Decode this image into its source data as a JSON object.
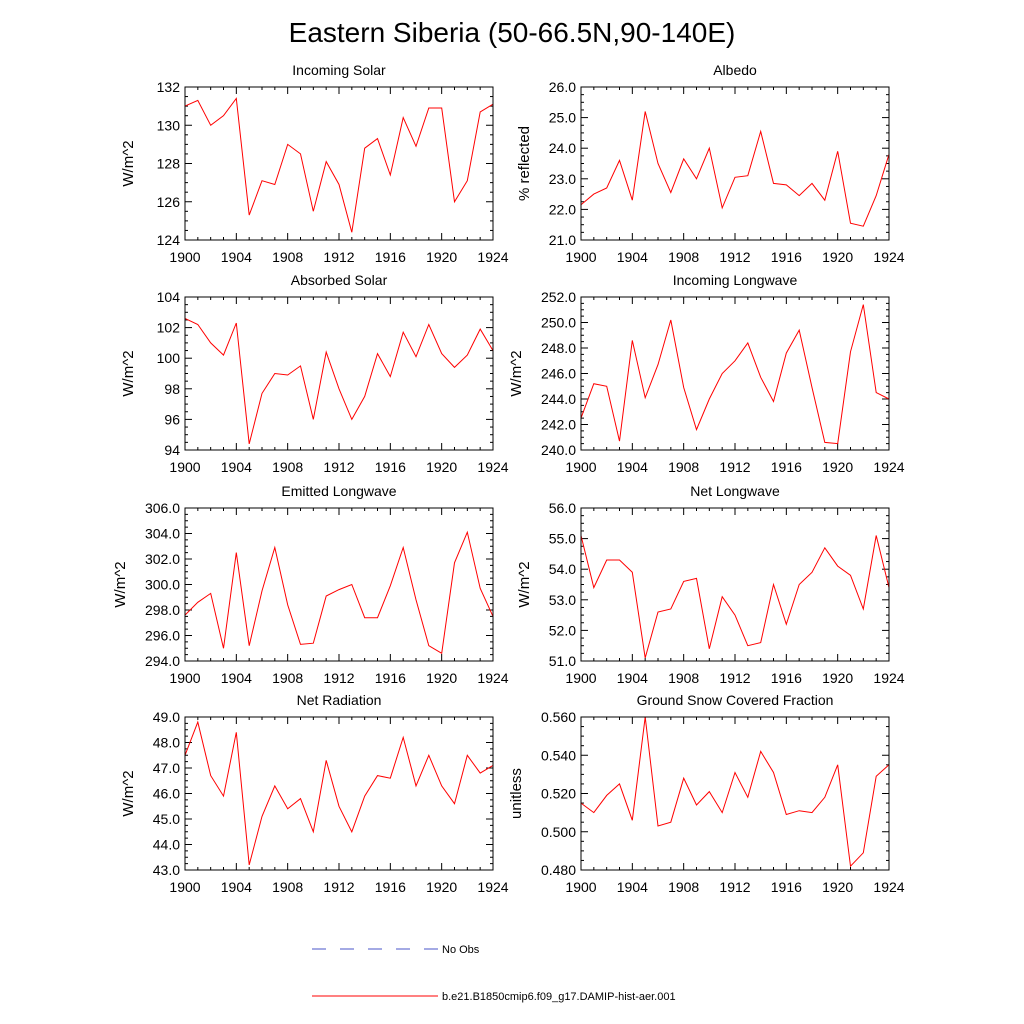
{
  "title": "Eastern Siberia (50-66.5N,90-140E)",
  "colors": {
    "model": "#ff0000",
    "obs": "#4a55c8"
  },
  "legend": [
    {
      "label": "No Obs",
      "style": "dashed",
      "color": "#4a55c8"
    },
    {
      "label": "b.e21.B1850cmip6.f09_g17.DAMIP-hist-aer.001",
      "style": "solid",
      "color": "#ff0000"
    }
  ],
  "chart_data": [
    {
      "type": "line",
      "title": "Incoming Solar",
      "xlabel": "",
      "ylabel": "W/m^2",
      "xlim": [
        1900,
        1924
      ],
      "ylim": [
        124,
        132
      ],
      "xticks": [
        "1900",
        "1904",
        "1908",
        "1912",
        "1916",
        "1920",
        "1924"
      ],
      "yticks": [
        "124",
        "126",
        "128",
        "130",
        "132"
      ],
      "x": [
        1900,
        1901,
        1902,
        1903,
        1904,
        1905,
        1906,
        1907,
        1908,
        1909,
        1910,
        1911,
        1912,
        1913,
        1914,
        1915,
        1916,
        1917,
        1918,
        1919,
        1920,
        1921,
        1922,
        1923,
        1924
      ],
      "series": [
        {
          "values": [
            131.0,
            131.3,
            130.0,
            130.5,
            131.4,
            125.3,
            127.1,
            126.9,
            129.0,
            128.5,
            125.5,
            128.1,
            126.9,
            124.4,
            128.8,
            129.3,
            127.4,
            130.4,
            128.9,
            130.9,
            130.9,
            126.0,
            127.1,
            130.7,
            131.1
          ]
        }
      ]
    },
    {
      "type": "line",
      "title": "Albedo",
      "xlabel": "",
      "ylabel": "% reflected",
      "xlim": [
        1900,
        1924
      ],
      "ylim": [
        21.0,
        26.0
      ],
      "xticks": [
        "1900",
        "1904",
        "1908",
        "1912",
        "1916",
        "1920",
        "1924"
      ],
      "yticks": [
        "21.0",
        "22.0",
        "23.0",
        "24.0",
        "25.0",
        "26.0"
      ],
      "x": [
        1900,
        1901,
        1902,
        1903,
        1904,
        1905,
        1906,
        1907,
        1908,
        1909,
        1910,
        1911,
        1912,
        1913,
        1914,
        1915,
        1916,
        1917,
        1918,
        1919,
        1920,
        1921,
        1922,
        1923,
        1924
      ],
      "series": [
        {
          "values": [
            22.15,
            22.5,
            22.7,
            23.6,
            22.3,
            25.2,
            23.5,
            22.55,
            23.65,
            23.0,
            24.0,
            22.05,
            23.05,
            23.1,
            24.55,
            22.85,
            22.8,
            22.45,
            22.85,
            22.3,
            23.9,
            21.55,
            21.45,
            22.45,
            23.8
          ]
        }
      ]
    },
    {
      "type": "line",
      "title": "Absorbed Solar",
      "xlabel": "",
      "ylabel": "W/m^2",
      "xlim": [
        1900,
        1924
      ],
      "ylim": [
        94,
        104
      ],
      "xticks": [
        "1900",
        "1904",
        "1908",
        "1912",
        "1916",
        "1920",
        "1924"
      ],
      "yticks": [
        "94",
        "96",
        "98",
        "100",
        "102",
        "104"
      ],
      "x": [
        1900,
        1901,
        1902,
        1903,
        1904,
        1905,
        1906,
        1907,
        1908,
        1909,
        1910,
        1911,
        1912,
        1913,
        1914,
        1915,
        1916,
        1917,
        1918,
        1919,
        1920,
        1921,
        1922,
        1923,
        1924
      ],
      "series": [
        {
          "values": [
            102.6,
            102.2,
            101.0,
            100.2,
            102.3,
            94.4,
            97.7,
            99.0,
            98.9,
            99.5,
            96.0,
            100.4,
            98.0,
            96.0,
            97.5,
            100.3,
            98.8,
            101.7,
            100.1,
            102.2,
            100.3,
            99.4,
            100.2,
            101.9,
            100.5
          ]
        }
      ]
    },
    {
      "type": "line",
      "title": "Incoming Longwave",
      "xlabel": "",
      "ylabel": "W/m^2",
      "xlim": [
        1900,
        1924
      ],
      "ylim": [
        240.0,
        252.0
      ],
      "xticks": [
        "1900",
        "1904",
        "1908",
        "1912",
        "1916",
        "1920",
        "1924"
      ],
      "yticks": [
        "240.0",
        "242.0",
        "244.0",
        "246.0",
        "248.0",
        "250.0",
        "252.0"
      ],
      "x": [
        1900,
        1901,
        1902,
        1903,
        1904,
        1905,
        1906,
        1907,
        1908,
        1909,
        1910,
        1911,
        1912,
        1913,
        1914,
        1915,
        1916,
        1917,
        1918,
        1919,
        1920,
        1921,
        1922,
        1923,
        1924
      ],
      "series": [
        {
          "values": [
            242.5,
            245.2,
            245.0,
            240.7,
            248.6,
            244.1,
            246.7,
            250.2,
            244.9,
            241.6,
            244.0,
            246.0,
            247.0,
            248.4,
            245.7,
            243.8,
            247.6,
            249.4,
            244.9,
            240.6,
            240.5,
            247.7,
            251.4,
            244.5,
            244.0
          ]
        }
      ]
    },
    {
      "type": "line",
      "title": "Emitted Longwave",
      "xlabel": "",
      "ylabel": "W/m^2",
      "xlim": [
        1900,
        1924
      ],
      "ylim": [
        294.0,
        306.0
      ],
      "xticks": [
        "1900",
        "1904",
        "1908",
        "1912",
        "1916",
        "1920",
        "1924"
      ],
      "yticks": [
        "294.0",
        "296.0",
        "298.0",
        "300.0",
        "302.0",
        "304.0",
        "306.0"
      ],
      "x": [
        1900,
        1901,
        1902,
        1903,
        1904,
        1905,
        1906,
        1907,
        1908,
        1909,
        1910,
        1911,
        1912,
        1913,
        1914,
        1915,
        1916,
        1917,
        1918,
        1919,
        1920,
        1921,
        1922,
        1923,
        1924
      ],
      "series": [
        {
          "values": [
            297.6,
            298.6,
            299.3,
            295.0,
            302.5,
            295.2,
            299.5,
            302.9,
            298.4,
            295.3,
            295.4,
            299.1,
            299.6,
            300.0,
            297.4,
            297.4,
            299.9,
            302.9,
            298.8,
            295.2,
            294.6,
            301.7,
            304.1,
            299.7,
            297.5
          ]
        }
      ]
    },
    {
      "type": "line",
      "title": "Net Longwave",
      "xlabel": "",
      "ylabel": "W/m^2",
      "xlim": [
        1900,
        1924
      ],
      "ylim": [
        51.0,
        56.0
      ],
      "xticks": [
        "1900",
        "1904",
        "1908",
        "1912",
        "1916",
        "1920",
        "1924"
      ],
      "yticks": [
        "51.0",
        "52.0",
        "53.0",
        "54.0",
        "55.0",
        "56.0"
      ],
      "x": [
        1900,
        1901,
        1902,
        1903,
        1904,
        1905,
        1906,
        1907,
        1908,
        1909,
        1910,
        1911,
        1912,
        1913,
        1914,
        1915,
        1916,
        1917,
        1918,
        1919,
        1920,
        1921,
        1922,
        1923,
        1924
      ],
      "series": [
        {
          "values": [
            55.1,
            53.4,
            54.3,
            54.3,
            53.9,
            51.1,
            52.6,
            52.7,
            53.6,
            53.7,
            51.4,
            53.1,
            52.5,
            51.5,
            51.6,
            53.5,
            52.2,
            53.5,
            53.9,
            54.7,
            54.1,
            53.8,
            52.7,
            55.1,
            53.4
          ]
        }
      ]
    },
    {
      "type": "line",
      "title": "Net Radiation",
      "xlabel": "",
      "ylabel": "W/m^2",
      "xlim": [
        1900,
        1924
      ],
      "ylim": [
        43.0,
        49.0
      ],
      "xticks": [
        "1900",
        "1904",
        "1908",
        "1912",
        "1916",
        "1920",
        "1924"
      ],
      "yticks": [
        "43.0",
        "44.0",
        "45.0",
        "46.0",
        "47.0",
        "48.0",
        "49.0"
      ],
      "x": [
        1900,
        1901,
        1902,
        1903,
        1904,
        1905,
        1906,
        1907,
        1908,
        1909,
        1910,
        1911,
        1912,
        1913,
        1914,
        1915,
        1916,
        1917,
        1918,
        1919,
        1920,
        1921,
        1922,
        1923,
        1924
      ],
      "series": [
        {
          "values": [
            47.5,
            48.8,
            46.7,
            45.9,
            48.4,
            43.2,
            45.1,
            46.3,
            45.4,
            45.8,
            44.5,
            47.3,
            45.5,
            44.5,
            45.9,
            46.7,
            46.6,
            48.2,
            46.3,
            47.5,
            46.3,
            45.6,
            47.5,
            46.8,
            47.1
          ]
        }
      ]
    },
    {
      "type": "line",
      "title": "Ground Snow Covered Fraction",
      "xlabel": "",
      "ylabel": "unitless",
      "xlim": [
        1900,
        1924
      ],
      "ylim": [
        0.48,
        0.56
      ],
      "xticks": [
        "1900",
        "1904",
        "1908",
        "1912",
        "1916",
        "1920",
        "1924"
      ],
      "yticks": [
        "0.480",
        "0.500",
        "0.520",
        "0.540",
        "0.560"
      ],
      "x": [
        1900,
        1901,
        1902,
        1903,
        1904,
        1905,
        1906,
        1907,
        1908,
        1909,
        1910,
        1911,
        1912,
        1913,
        1914,
        1915,
        1916,
        1917,
        1918,
        1919,
        1920,
        1921,
        1922,
        1923,
        1924
      ],
      "series": [
        {
          "values": [
            0.515,
            0.51,
            0.519,
            0.525,
            0.506,
            0.56,
            0.503,
            0.505,
            0.528,
            0.514,
            0.521,
            0.51,
            0.531,
            0.518,
            0.542,
            0.531,
            0.509,
            0.511,
            0.51,
            0.518,
            0.535,
            0.482,
            0.489,
            0.529,
            0.535
          ]
        }
      ]
    }
  ]
}
